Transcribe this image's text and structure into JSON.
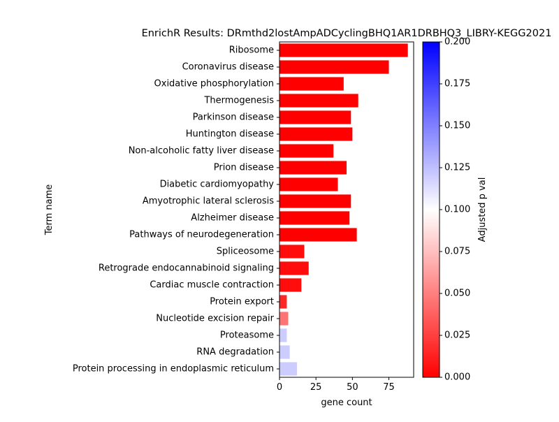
{
  "chart_data": {
    "type": "bar",
    "orientation": "horizontal",
    "title": "EnrichR Results: DRmthd2lostAmpADCyclingBHQ1AR1DRBHQ3_LIBRY-KEGG2021",
    "xlabel": "gene count",
    "ylabel": "Term name",
    "xlim": [
      0,
      92
    ],
    "xticks": [
      0,
      25,
      50,
      75
    ],
    "grid": false,
    "categories": [
      "Ribosome",
      "Coronavirus disease",
      "Oxidative phosphorylation",
      "Thermogenesis",
      "Parkinson disease",
      "Huntington disease",
      "Non-alcoholic fatty liver disease",
      "Prion disease",
      "Diabetic cardiomyopathy",
      "Amyotrophic lateral sclerosis",
      "Alzheimer disease",
      "Pathways of neurodegeneration",
      "Spliceosome",
      "Retrograde endocannabinoid signaling",
      "Cardiac muscle contraction",
      "Protein export",
      "Nucleotide excision repair",
      "Proteasome",
      "RNA degradation",
      "Protein processing in endoplasmic reticulum"
    ],
    "values": [
      88,
      75,
      44,
      54,
      49,
      50,
      37,
      46,
      40,
      49,
      48,
      53,
      17,
      20,
      15,
      5,
      6,
      5,
      7,
      12
    ],
    "adjusted_p": [
      0.0001,
      0.0001,
      0.0001,
      0.0001,
      0.0001,
      0.0001,
      0.0001,
      0.0001,
      0.0001,
      0.0001,
      0.0001,
      0.0001,
      0.005,
      0.005,
      0.005,
      0.015,
      0.045,
      0.12,
      0.12,
      0.12
    ],
    "colorbar": {
      "label": "Adjusted p val",
      "range": [
        0,
        0.2
      ],
      "ticks": [
        0.0,
        0.025,
        0.05,
        0.075,
        0.1,
        0.125,
        0.15,
        0.175,
        0.2
      ],
      "colormap": "bwr_r",
      "colors": {
        "low": "#ff0000",
        "mid": "#ffffff",
        "high": "#0000ff"
      }
    }
  }
}
